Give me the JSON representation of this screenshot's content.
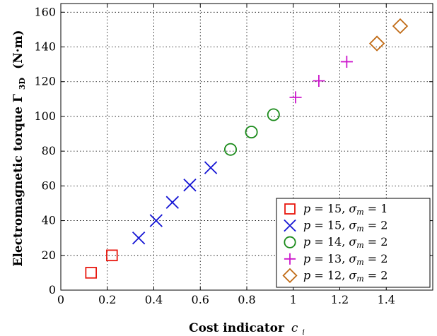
{
  "chart_data": {
    "type": "scatter",
    "xlabel": "Cost indicator",
    "xlabel_sub": "c",
    "xlabel_sub_index": "i",
    "ylabel": "Electromagnetic torque Γ",
    "ylabel_sub": "3D",
    "ylabel_unit": "(N·m)",
    "xlim": [
      0,
      1.6
    ],
    "ylim": [
      0,
      165
    ],
    "xticks": [
      0,
      0.2,
      0.4,
      0.6,
      0.8,
      1,
      1.2,
      1.4
    ],
    "xtick_labels": [
      "0",
      "0.2",
      "0.4",
      "0.6",
      "0.8",
      "1",
      "1.2",
      "1.4"
    ],
    "yticks": [
      0,
      20,
      40,
      60,
      80,
      100,
      120,
      140,
      160
    ],
    "ytick_labels": [
      "0",
      "20",
      "40",
      "60",
      "80",
      "100",
      "120",
      "140",
      "160"
    ],
    "grid": true,
    "legend_position": "bottom-right",
    "series": [
      {
        "name": "p = 15, σm = 1",
        "p": "15",
        "sigma": "1",
        "marker": "square",
        "color": "#e8180f",
        "x": [
          0.13,
          0.22
        ],
        "y": [
          10,
          20
        ]
      },
      {
        "name": "p = 15, σm = 2",
        "p": "15",
        "sigma": "2",
        "marker": "x",
        "color": "#1414d4",
        "x": [
          0.335,
          0.41,
          0.48,
          0.555,
          0.645
        ],
        "y": [
          30,
          40,
          50.5,
          60.5,
          70.5
        ]
      },
      {
        "name": "p = 14, σm = 2",
        "p": "14",
        "sigma": "2",
        "marker": "circle",
        "color": "#1a8a1a",
        "x": [
          0.73,
          0.82,
          0.915
        ],
        "y": [
          81,
          91,
          101
        ]
      },
      {
        "name": "p = 13, σm = 2",
        "p": "13",
        "sigma": "2",
        "marker": "plus",
        "color": "#cc15cc",
        "x": [
          1.01,
          1.11,
          1.23
        ],
        "y": [
          111,
          120.5,
          131.5
        ]
      },
      {
        "name": "p = 12, σm = 2",
        "p": "12",
        "sigma": "2",
        "marker": "diamond",
        "color": "#c06a14",
        "x": [
          1.36,
          1.46
        ],
        "y": [
          142,
          152
        ]
      }
    ]
  }
}
